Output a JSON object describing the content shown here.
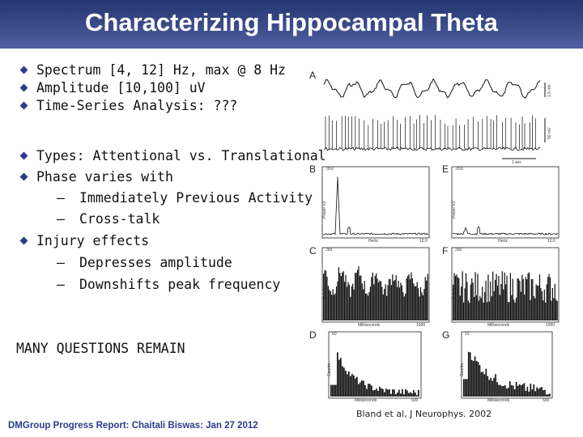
{
  "slide": {
    "title": "Characterizing Hippocampal Theta",
    "bullets": [
      {
        "text": "Spectrum [4, 12] Hz, max @ 8 Hz",
        "level": 1
      },
      {
        "text": "Amplitude [10,100] uV",
        "level": 1
      },
      {
        "text": "Time-Series Analysis: ???",
        "level": 1
      },
      {
        "text": "Types: Attentional vs. Translational",
        "level": 1
      },
      {
        "text": "Phase varies with",
        "level": 1
      },
      {
        "text": "Immediately Previous Activity",
        "level": 2
      },
      {
        "text": "Cross-talk",
        "level": 2
      },
      {
        "text": "Injury effects",
        "level": 1
      },
      {
        "text": "Depresses amplitude",
        "level": 2
      },
      {
        "text": "Downshifts peak frequency",
        "level": 2
      }
    ],
    "dash_symbol": "–",
    "callout": "MANY QUESTIONS REMAIN",
    "citation": "Bland et al, J Neurophys. 2002",
    "footer": "DMGroup Progress Report: Chaitali Biswas: Jan 27 2012",
    "bullet_color": "#2b3d8a",
    "title_bar_color": "#3a4a8a"
  },
  "figure": {
    "panel_letters": [
      "A",
      "B",
      "C",
      "D",
      "E",
      "F",
      "G"
    ],
    "trace_labels": {
      "top_scale": "1.5 mV",
      "bottom_scale": "50 mV",
      "time_scale": "1 sec"
    },
    "panels": {
      "B": {
        "ylabel": "Power V2",
        "xlabel": "Hertz",
        "ytick": ".050",
        "xtick_end": "10.0"
      },
      "E": {
        "ylabel": "Power V2",
        "xlabel": "Hertz",
        "ytick": ".050",
        "xtick_end": "10.0"
      },
      "C": {
        "ylabel": "Cnts/bin",
        "xlabel": "Milliseconds",
        "ytick": "250",
        "xtick_end": "1000"
      },
      "F": {
        "ylabel": "Cnts/bin",
        "xlabel": "Milliseconds",
        "ytick": "250",
        "xtick_end": "1000"
      },
      "D": {
        "ylabel": "Counts",
        "xlabel": "Milliseconds",
        "ytick": "60",
        "xtick_end": "500"
      },
      "G": {
        "ylabel": "Counts",
        "xlabel": "Milliseconds",
        "ytick": "15",
        "xtick_end": "500"
      }
    }
  }
}
